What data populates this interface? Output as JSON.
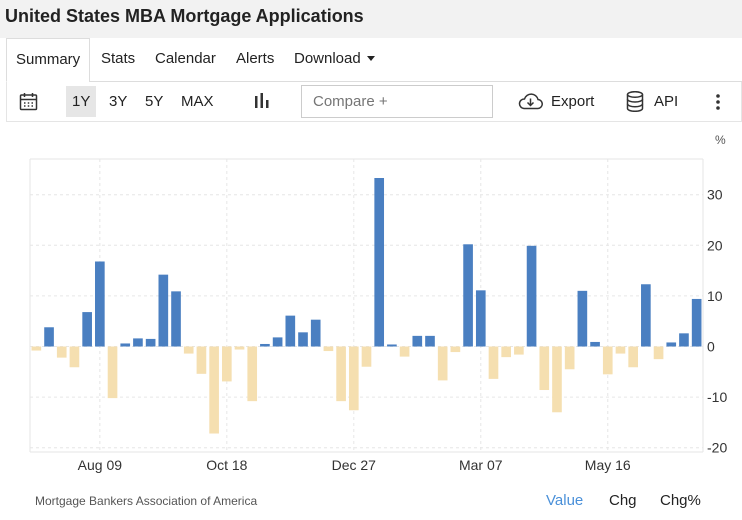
{
  "title": "United States MBA Mortgage Applications",
  "tabs": [
    {
      "label": "Summary",
      "active": true
    },
    {
      "label": "Stats"
    },
    {
      "label": "Calendar"
    },
    {
      "label": "Alerts"
    },
    {
      "label": "Download",
      "dropdown": true
    }
  ],
  "toolbar": {
    "calendar_icon": "calendar-icon",
    "ranges": [
      {
        "label": "1Y",
        "active": true
      },
      {
        "label": "3Y"
      },
      {
        "label": "5Y"
      },
      {
        "label": "MAX"
      }
    ],
    "chart_type_icon": "bar-chart-icon",
    "compare_placeholder": "Compare +",
    "export_label": "Export",
    "export_icon": "cloud-download-icon",
    "api_label": "API",
    "api_icon": "database-icon",
    "more_icon": "kebab-menu-icon"
  },
  "chart_data": {
    "type": "bar",
    "unit": "%",
    "ylim": [
      -22,
      37
    ],
    "yticks": [
      -20,
      -10,
      0,
      10,
      20,
      30
    ],
    "grid": true,
    "positive_color": "#4a7fc1",
    "negative_color": "#f5dfb0",
    "xtick_labels": [
      {
        "label": "Aug 09",
        "index": 5
      },
      {
        "label": "Oct 18",
        "index": 15
      },
      {
        "label": "Dec 27",
        "index": 25
      },
      {
        "label": "Mar 07",
        "index": 35
      },
      {
        "label": "May 16",
        "index": 45
      }
    ],
    "values": [
      -0.8,
      3.8,
      -2.2,
      -4.1,
      6.8,
      16.8,
      -10.2,
      0.6,
      1.6,
      1.5,
      14.2,
      10.9,
      -1.4,
      -5.4,
      -17.2,
      -6.9,
      -0.6,
      -10.8,
      0.5,
      1.8,
      6.1,
      2.8,
      5.3,
      -0.9,
      -10.8,
      -12.6,
      -4.0,
      33.3,
      0.4,
      -2.0,
      2.1,
      2.1,
      -6.7,
      -1.1,
      20.2,
      11.1,
      -6.4,
      -2.1,
      -1.6,
      19.9,
      -8.6,
      -13.0,
      -4.5,
      11.0,
      0.9,
      -5.5,
      -1.4,
      -4.1,
      12.3,
      -2.5,
      0.8,
      2.6,
      9.4
    ]
  },
  "footer": {
    "source": "Mortgage Bankers Association of America",
    "value_label": "Value",
    "chg_label": "Chg",
    "chgpct_label": "Chg%"
  }
}
